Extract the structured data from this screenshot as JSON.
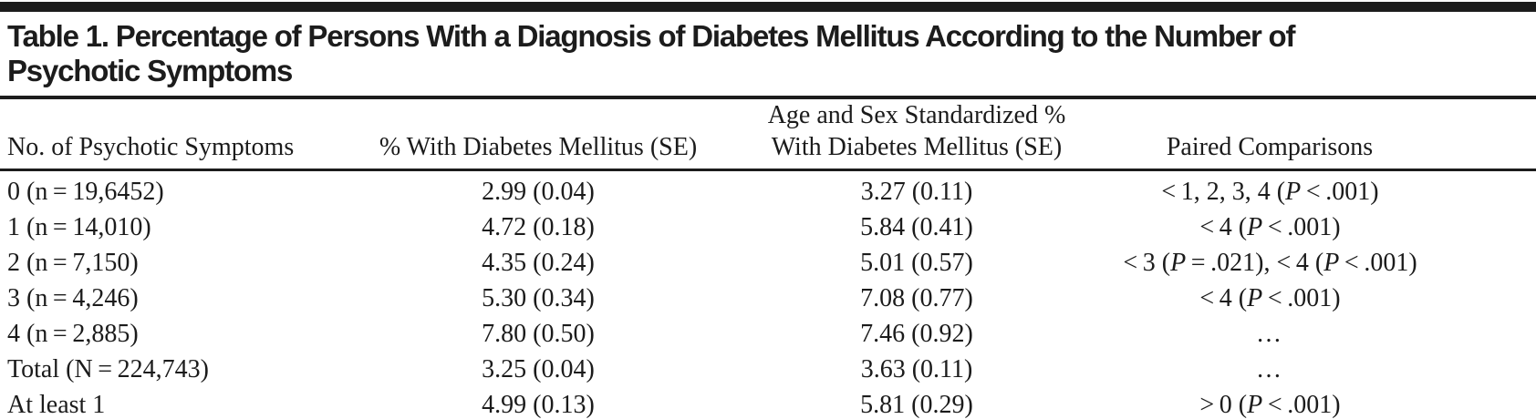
{
  "title": {
    "line1": "Table 1. Percentage of Persons With a Diagnosis of Diabetes Mellitus According to the Number of",
    "line2": "Psychotic Symptoms"
  },
  "table": {
    "columns": [
      {
        "label": "No. of Psychotic Symptoms"
      },
      {
        "label": "% With Diabetes Mellitus (SE)"
      },
      {
        "label_line1": "Age and Sex Standardized %",
        "label_line2": "With Diabetes Mellitus (SE)"
      },
      {
        "label": "Paired Comparisons"
      }
    ],
    "rows": [
      {
        "symptoms": "0 (n = 19,6452)",
        "pct": "2.99 (0.04)",
        "std_pct": "3.27 (0.11)",
        "paired": "< 1, 2, 3, 4 (P < .001)"
      },
      {
        "symptoms": "1 (n = 14,010)",
        "pct": "4.72 (0.18)",
        "std_pct": "5.84 (0.41)",
        "paired": "< 4 (P < .001)"
      },
      {
        "symptoms": "2 (n = 7,150)",
        "pct": "4.35 (0.24)",
        "std_pct": "5.01 (0.57)",
        "paired": "< 3 (P = .021), < 4 (P < .001)"
      },
      {
        "symptoms": "3 (n = 4,246)",
        "pct": "5.30 (0.34)",
        "std_pct": "7.08 (0.77)",
        "paired": "< 4 (P < .001)"
      },
      {
        "symptoms": "4 (n = 2,885)",
        "pct": "7.80 (0.50)",
        "std_pct": "7.46 (0.92)",
        "paired": "…"
      },
      {
        "symptoms": "Total (N = 224,743)",
        "pct": "3.25 (0.04)",
        "std_pct": "3.63 (0.11)",
        "paired": "…"
      },
      {
        "symptoms": "At least 1",
        "pct": "4.99 (0.13)",
        "std_pct": "5.81 (0.29)",
        "paired": "> 0 (P < .001)"
      }
    ]
  },
  "colors": {
    "text": "#1b1b1b",
    "rule": "#1c1c1c",
    "background": "#ffffff"
  }
}
